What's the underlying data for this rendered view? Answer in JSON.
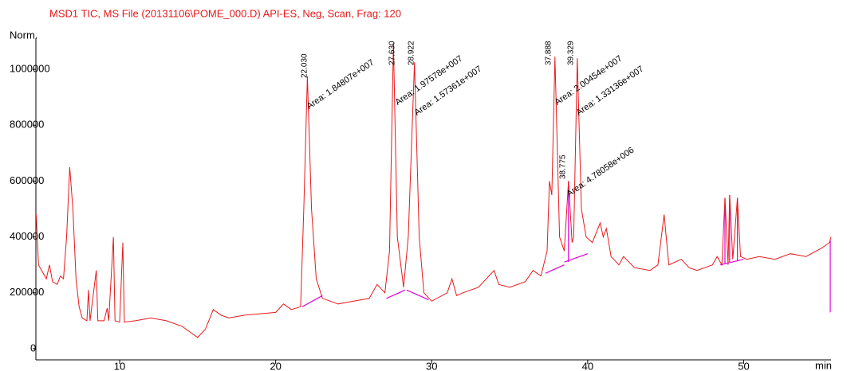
{
  "chart_data": {
    "type": "line",
    "title": "MSD1 TIC, MS File (20131106\\POME_000.D)    API-ES, Neg, Scan, Frag: 120",
    "ylabel": "Norm.",
    "xlabel": "min",
    "color": "#e8191b",
    "baseline_color": "#e000e0",
    "xlim": [
      4.63,
      55.6
    ],
    "ylim": [
      -40000,
      1100000
    ],
    "xticks": [
      10,
      20,
      30,
      40,
      50
    ],
    "yticks": [
      0,
      200000,
      400000,
      600000,
      800000,
      1000000
    ],
    "x": [
      4.65,
      4.8,
      5.0,
      5.3,
      5.5,
      5.7,
      6.0,
      6.2,
      6.4,
      6.6,
      6.8,
      7.0,
      7.2,
      7.4,
      7.6,
      7.9,
      8.0,
      8.1,
      8.5,
      8.6,
      9.0,
      9.2,
      9.3,
      9.6,
      9.7,
      10.0,
      10.2,
      10.3,
      11,
      12,
      13,
      14,
      15,
      15.5,
      16,
      16.5,
      17,
      18,
      19,
      20,
      20.5,
      21,
      21.6,
      21.8,
      22.03,
      22.3,
      22.6,
      23,
      24,
      25,
      26,
      26.5,
      27,
      27.3,
      27.55,
      27.8,
      28.2,
      28.5,
      28.9,
      29.2,
      29.5,
      30,
      31,
      31.3,
      31.6,
      32,
      33,
      34,
      34.3,
      35,
      36,
      36.5,
      37,
      37.4,
      37.55,
      37.7,
      37.9,
      38.2,
      38.5,
      38.77,
      39.0,
      39.1,
      39.33,
      39.6,
      39.9,
      40.3,
      40.8,
      41,
      41.2,
      41.5,
      42,
      42.3,
      43,
      44,
      44.5,
      44.9,
      45.2,
      46,
      46.5,
      47,
      48,
      48.3,
      48.6,
      48.8,
      49.0,
      49.1,
      49.3,
      49.6,
      49.8,
      50.2,
      51,
      52,
      53,
      54,
      55,
      55.5,
      55.6
    ],
    "values": [
      480000,
      300000,
      280000,
      250000,
      300000,
      240000,
      230000,
      260000,
      250000,
      400000,
      650000,
      500000,
      250000,
      150000,
      110000,
      100000,
      210000,
      100000,
      280000,
      100000,
      100000,
      145000,
      100000,
      400000,
      100000,
      95000,
      380000,
      95000,
      100000,
      110000,
      100000,
      80000,
      40000,
      70000,
      140000,
      120000,
      110000,
      120000,
      125000,
      130000,
      160000,
      140000,
      150000,
      500000,
      975000,
      500000,
      250000,
      180000,
      160000,
      170000,
      180000,
      230000,
      200000,
      350000,
      1095000,
      400000,
      220000,
      400000,
      1025000,
      400000,
      200000,
      170000,
      200000,
      250000,
      190000,
      200000,
      220000,
      280000,
      230000,
      220000,
      240000,
      280000,
      260000,
      350000,
      600000,
      550000,
      1045000,
      400000,
      350000,
      600000,
      380000,
      400000,
      1040000,
      500000,
      400000,
      380000,
      450000,
      400000,
      430000,
      330000,
      300000,
      330000,
      290000,
      280000,
      300000,
      480000,
      300000,
      320000,
      290000,
      280000,
      300000,
      330000,
      300000,
      540000,
      300000,
      550000,
      320000,
      540000,
      330000,
      320000,
      330000,
      320000,
      340000,
      330000,
      360000,
      380000,
      400000
    ],
    "baselines": [
      [
        21.7,
        150000,
        23.0,
        190000
      ],
      [
        27.1,
        180000,
        28.3,
        210000
      ],
      [
        28.4,
        210000,
        29.8,
        175000
      ],
      [
        37.3,
        270000,
        38.5,
        300000
      ],
      [
        38.5,
        310000,
        40.0,
        340000
      ],
      [
        38.77,
        310000,
        38.77,
        600000
      ],
      [
        48.5,
        300000,
        50.0,
        320000
      ],
      [
        48.8,
        305000,
        48.8,
        540000
      ],
      [
        49.1,
        310000,
        49.1,
        550000
      ],
      [
        49.6,
        315000,
        49.6,
        540000
      ],
      [
        55.55,
        130000,
        55.55,
        390000
      ]
    ],
    "annotations": [
      "Area: 1.84807e+007",
      "Area: 1.97578e+007",
      "Area: 1.57361e+007",
      "Area: 2.00454e+007",
      "Area: 1.33136e+007",
      "Area: 4.78058e+006"
    ],
    "peak_labels": [
      "22.030",
      "27.630",
      "28.922",
      "37.888",
      "39.329",
      "38.775"
    ]
  }
}
